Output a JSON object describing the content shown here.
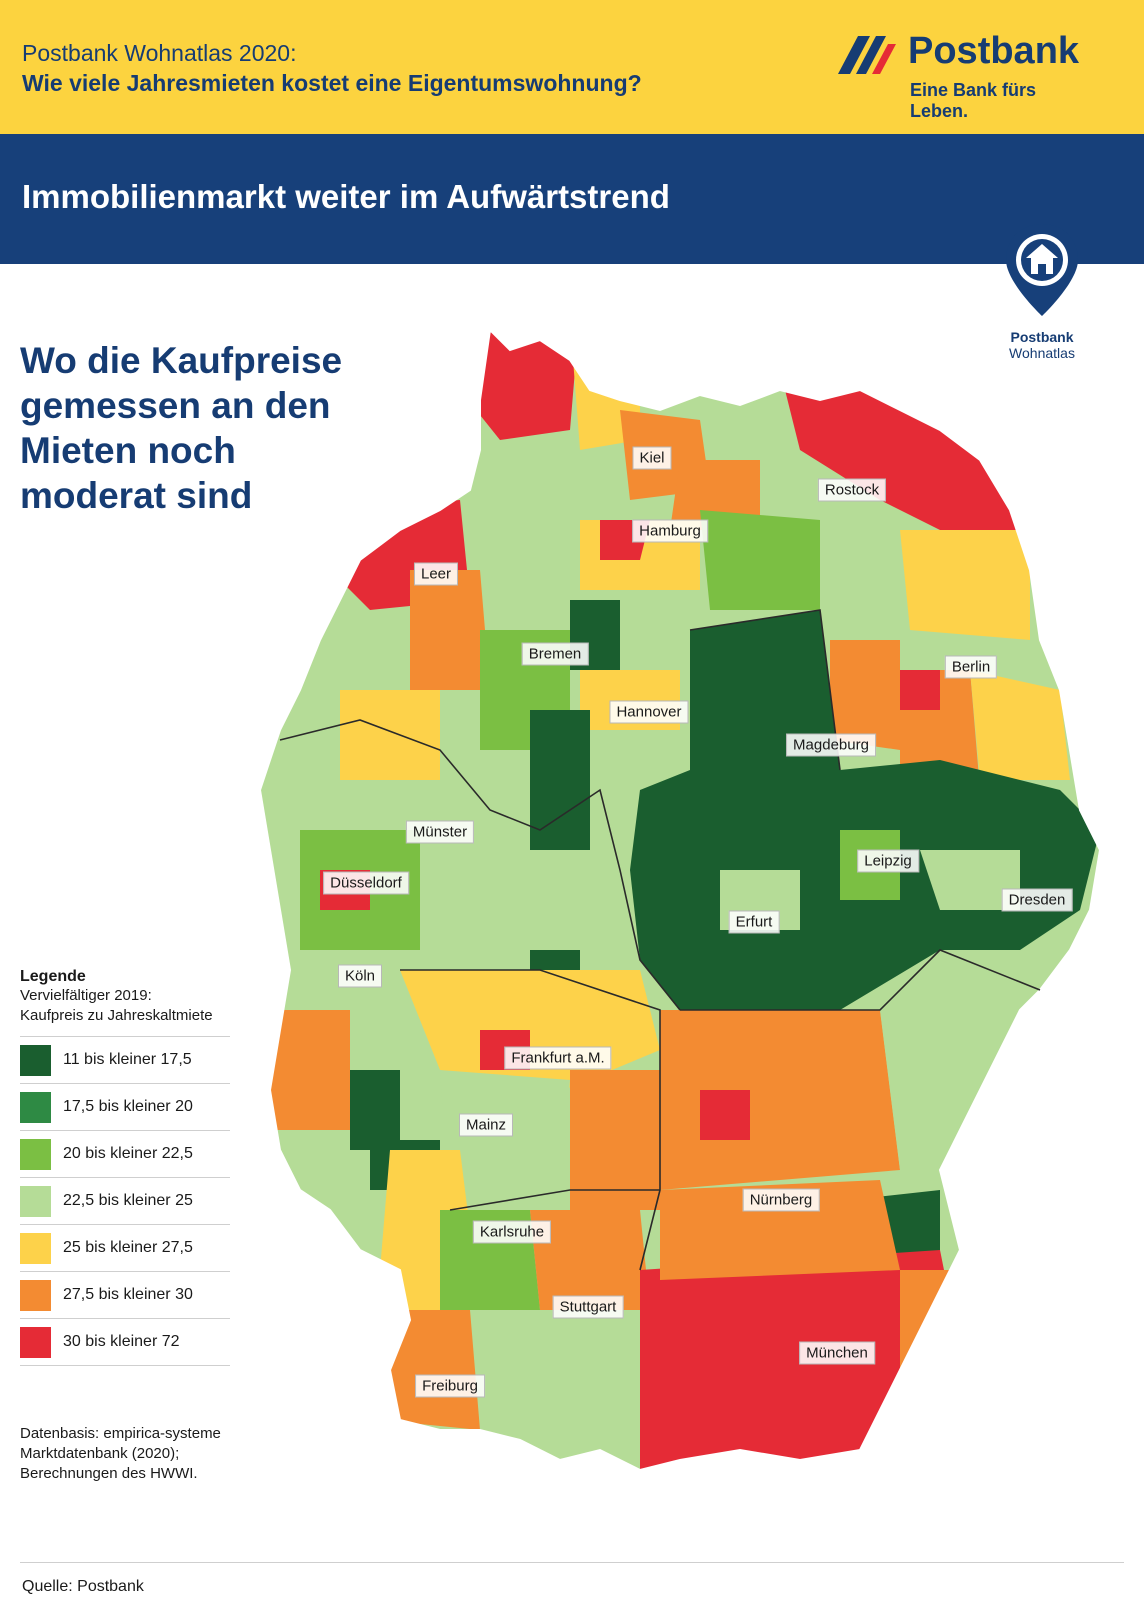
{
  "header": {
    "title_line1": "Postbank Wohnatlas 2020:",
    "title_line2": "Wie viele Jahresmieten kostet eine Eigentumswohnung?",
    "brand": "Postbank",
    "claim": "Eine Bank fürs Leben."
  },
  "banner": {
    "text": "Immobilienmarkt weiter im Aufwärtstrend"
  },
  "pin": {
    "line1": "Postbank",
    "line2": "Wohnatlas"
  },
  "headline": "Wo die Kaufpreise\ngemessen an den\nMieten noch\nmoderat sind",
  "legend": {
    "title": "Legende",
    "subtitle": "Vervielfältiger 2019:\nKaufpreis zu Jahreskaltmiete",
    "items": [
      {
        "label": "11 bis kleiner 17,5",
        "color": "#1a5e2f"
      },
      {
        "label": "17,5 bis kleiner 20",
        "color": "#2e8a44"
      },
      {
        "label": "20 bis kleiner 22,5",
        "color": "#7bbf43"
      },
      {
        "label": "22,5 bis kleiner 25",
        "color": "#b5dc97"
      },
      {
        "label": "25 bis kleiner 27,5",
        "color": "#fdd24a"
      },
      {
        "label": "27,5 bis kleiner 30",
        "color": "#f38b32"
      },
      {
        "label": "30 bis kleiner 72",
        "color": "#e52b36"
      }
    ]
  },
  "cities": [
    {
      "name": "Kiel"
    },
    {
      "name": "Rostock"
    },
    {
      "name": "Hamburg"
    },
    {
      "name": "Leer"
    },
    {
      "name": "Bremen"
    },
    {
      "name": "Berlin"
    },
    {
      "name": "Hannover"
    },
    {
      "name": "Magdeburg"
    },
    {
      "name": "Münster"
    },
    {
      "name": "Leipzig"
    },
    {
      "name": "Düsseldorf"
    },
    {
      "name": "Dresden"
    },
    {
      "name": "Erfurt"
    },
    {
      "name": "Köln"
    },
    {
      "name": "Frankfurt a.M."
    },
    {
      "name": "Mainz"
    },
    {
      "name": "Nürnberg"
    },
    {
      "name": "Karlsruhe"
    },
    {
      "name": "Stuttgart"
    },
    {
      "name": "München"
    },
    {
      "name": "Freiburg"
    }
  ],
  "source_note": "Datenbasis: empirica-systeme\nMarktdatenbank (2020);\nBerechnungen des HWWI.",
  "footer": {
    "quelle": "Quelle: Postbank"
  }
}
